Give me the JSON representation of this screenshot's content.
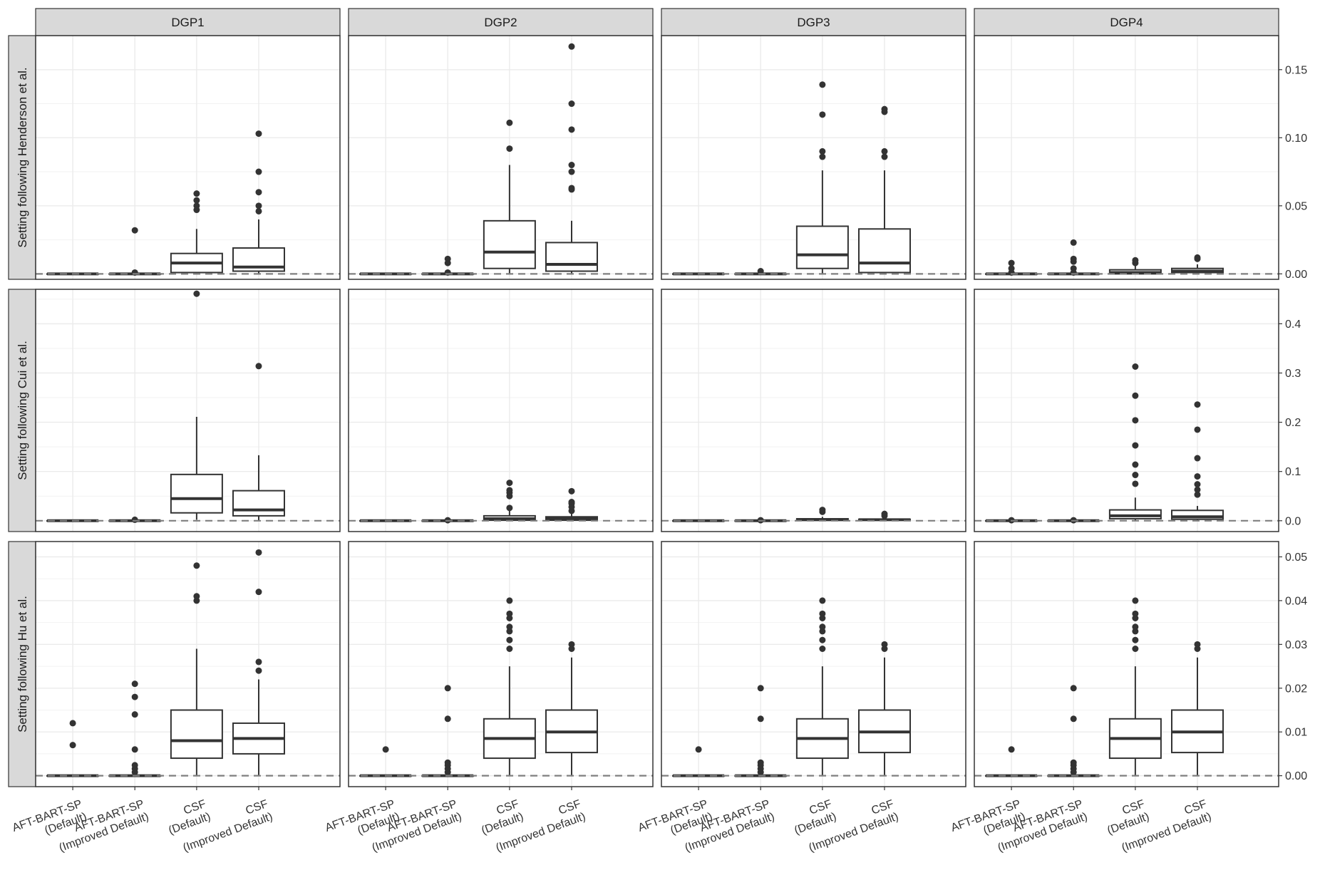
{
  "chart_data": {
    "type": "box",
    "categories": [
      [
        "AFT-BART-SP",
        "(Default)"
      ],
      [
        "AFT-BART-SP",
        "(Improved Default)"
      ],
      [
        "CSF",
        "(Default)"
      ],
      [
        "CSF",
        "(Improved Default)"
      ]
    ],
    "columns": [
      "DGP1",
      "DGP2",
      "DGP3",
      "DGP4"
    ],
    "rows": [
      {
        "label": "Setting following Henderson et al.",
        "ylim": [
          -0.004,
          0.175
        ],
        "yticks": [
          "0.00",
          "0.05",
          "0.10",
          "0.15"
        ],
        "ytick_values": [
          0,
          0.05,
          0.1,
          0.15
        ],
        "reference_line": 0,
        "panels": [
          {
            "boxes": [
              {
                "q1": 0,
                "median": 0,
                "q3": 0,
                "whisker_low": 0,
                "whisker_high": 0,
                "outliers": []
              },
              {
                "q1": 0,
                "median": 0,
                "q3": 0,
                "whisker_low": 0,
                "whisker_high": 0,
                "outliers": [
                  0.001,
                  0.032
                ]
              },
              {
                "q1": 0.001,
                "median": 0.008,
                "q3": 0.015,
                "whisker_low": 0,
                "whisker_high": 0.033,
                "outliers": [
                  0.047,
                  0.05,
                  0.054,
                  0.059
                ]
              },
              {
                "q1": 0.002,
                "median": 0.005,
                "q3": 0.019,
                "whisker_low": 0,
                "whisker_high": 0.04,
                "outliers": [
                  0.046,
                  0.05,
                  0.06,
                  0.075,
                  0.103
                ]
              }
            ]
          },
          {
            "boxes": [
              {
                "q1": 0,
                "median": 0,
                "q3": 0,
                "whisker_low": 0,
                "whisker_high": 0,
                "outliers": []
              },
              {
                "q1": 0,
                "median": 0,
                "q3": 0,
                "whisker_low": 0,
                "whisker_high": 0,
                "outliers": [
                  0.001,
                  0.008,
                  0.011
                ]
              },
              {
                "q1": 0.004,
                "median": 0.016,
                "q3": 0.039,
                "whisker_low": 0,
                "whisker_high": 0.08,
                "outliers": [
                  0.092,
                  0.111
                ]
              },
              {
                "q1": 0.002,
                "median": 0.007,
                "q3": 0.023,
                "whisker_low": 0,
                "whisker_high": 0.039,
                "outliers": [
                  0.062,
                  0.063,
                  0.075,
                  0.08,
                  0.106,
                  0.125,
                  0.167
                ]
              }
            ]
          },
          {
            "boxes": [
              {
                "q1": 0,
                "median": 0,
                "q3": 0,
                "whisker_low": 0,
                "whisker_high": 0,
                "outliers": []
              },
              {
                "q1": 0,
                "median": 0,
                "q3": 0,
                "whisker_low": 0,
                "whisker_high": 0,
                "outliers": [
                  0.002
                ]
              },
              {
                "q1": 0.004,
                "median": 0.014,
                "q3": 0.035,
                "whisker_low": 0,
                "whisker_high": 0.076,
                "outliers": [
                  0.086,
                  0.09,
                  0.117,
                  0.139
                ]
              },
              {
                "q1": 0.001,
                "median": 0.008,
                "q3": 0.033,
                "whisker_low": 0,
                "whisker_high": 0.076,
                "outliers": [
                  0.086,
                  0.09,
                  0.119,
                  0.121
                ]
              }
            ]
          },
          {
            "boxes": [
              {
                "q1": 0,
                "median": 0,
                "q3": 0,
                "whisker_low": 0,
                "whisker_high": 0,
                "outliers": [
                  0.001,
                  0.004,
                  0.008
                ]
              },
              {
                "q1": 0,
                "median": 0,
                "q3": 0,
                "whisker_low": 0,
                "whisker_high": 0,
                "outliers": [
                  0.001,
                  0.004,
                  0.009,
                  0.011,
                  0.023
                ]
              },
              {
                "q1": 0,
                "median": 0.001,
                "q3": 0.003,
                "whisker_low": 0,
                "whisker_high": 0.006,
                "outliers": [
                  0.008,
                  0.01
                ]
              },
              {
                "q1": 0.001,
                "median": 0.002,
                "q3": 0.004,
                "whisker_low": 0,
                "whisker_high": 0.007,
                "outliers": [
                  0.011,
                  0.012
                ]
              }
            ]
          }
        ]
      },
      {
        "label": "Setting following Cui et al.",
        "ylim": [
          -0.022,
          0.47
        ],
        "yticks": [
          "0.0",
          "0.1",
          "0.2",
          "0.3",
          "0.4"
        ],
        "ytick_values": [
          0,
          0.1,
          0.2,
          0.3,
          0.4
        ],
        "reference_line": 0,
        "panels": [
          {
            "boxes": [
              {
                "q1": 0,
                "median": 0,
                "q3": 0,
                "whisker_low": 0,
                "whisker_high": 0,
                "outliers": []
              },
              {
                "q1": 0,
                "median": 0,
                "q3": 0,
                "whisker_low": 0,
                "whisker_high": 0,
                "outliers": [
                  0.002
                ]
              },
              {
                "q1": 0.016,
                "median": 0.045,
                "q3": 0.094,
                "whisker_low": 0.002,
                "whisker_high": 0.211,
                "outliers": [
                  0.461
                ]
              },
              {
                "q1": 0.01,
                "median": 0.022,
                "q3": 0.061,
                "whisker_low": 0,
                "whisker_high": 0.133,
                "outliers": [
                  0.314
                ]
              }
            ]
          },
          {
            "boxes": [
              {
                "q1": 0,
                "median": 0,
                "q3": 0,
                "whisker_low": 0,
                "whisker_high": 0,
                "outliers": []
              },
              {
                "q1": 0,
                "median": 0,
                "q3": 0,
                "whisker_low": 0,
                "whisker_high": 0,
                "outliers": [
                  0.001
                ]
              },
              {
                "q1": 0.001,
                "median": 0.004,
                "q3": 0.01,
                "whisker_low": 0,
                "whisker_high": 0.02,
                "outliers": [
                  0.026,
                  0.05,
                  0.057,
                  0.062,
                  0.077
                ]
              },
              {
                "q1": 0.001,
                "median": 0.004,
                "q3": 0.008,
                "whisker_low": 0,
                "whisker_high": 0.015,
                "outliers": [
                  0.02,
                  0.028,
                  0.035,
                  0.038,
                  0.06
                ]
              }
            ]
          },
          {
            "boxes": [
              {
                "q1": 0,
                "median": 0,
                "q3": 0,
                "whisker_low": 0,
                "whisker_high": 0,
                "outliers": []
              },
              {
                "q1": 0,
                "median": 0,
                "q3": 0,
                "whisker_low": 0,
                "whisker_high": 0,
                "outliers": [
                  0.001
                ]
              },
              {
                "q1": 0.001,
                "median": 0.002,
                "q3": 0.004,
                "whisker_low": 0,
                "whisker_high": 0.008,
                "outliers": [
                  0.018,
                  0.022
                ]
              },
              {
                "q1": 0.001,
                "median": 0.002,
                "q3": 0.003,
                "whisker_low": 0,
                "whisker_high": 0.006,
                "outliers": [
                  0.01,
                  0.014
                ]
              }
            ]
          },
          {
            "boxes": [
              {
                "q1": 0,
                "median": 0,
                "q3": 0,
                "whisker_low": 0,
                "whisker_high": 0,
                "outliers": [
                  0.001
                ]
              },
              {
                "q1": 0,
                "median": 0,
                "q3": 0,
                "whisker_low": 0,
                "whisker_high": 0,
                "outliers": [
                  0.001
                ]
              },
              {
                "q1": 0.004,
                "median": 0.01,
                "q3": 0.022,
                "whisker_low": 0,
                "whisker_high": 0.047,
                "outliers": [
                  0.075,
                  0.093,
                  0.114,
                  0.153,
                  0.204,
                  0.254,
                  0.313
                ]
              },
              {
                "q1": 0.003,
                "median": 0.008,
                "q3": 0.021,
                "whisker_low": 0,
                "whisker_high": 0.03,
                "outliers": [
                  0.053,
                  0.063,
                  0.074,
                  0.09,
                  0.127,
                  0.185,
                  0.236
                ]
              }
            ]
          }
        ]
      },
      {
        "label": "Setting following Hu et al.",
        "ylim": [
          -0.0025,
          0.0535
        ],
        "yticks": [
          "0.00",
          "0.01",
          "0.02",
          "0.03",
          "0.04",
          "0.05"
        ],
        "ytick_values": [
          0,
          0.01,
          0.02,
          0.03,
          0.04,
          0.05
        ],
        "reference_line": 0,
        "panels": [
          {
            "boxes": [
              {
                "q1": 0,
                "median": 0,
                "q3": 0,
                "whisker_low": 0,
                "whisker_high": 0,
                "outliers": [
                  0.007,
                  0.012
                ]
              },
              {
                "q1": 0,
                "median": 0,
                "q3": 0,
                "whisker_low": 0,
                "whisker_high": 0,
                "outliers": [
                  0.0008,
                  0.0016,
                  0.0024,
                  0.006,
                  0.014,
                  0.018,
                  0.021
                ]
              },
              {
                "q1": 0.004,
                "median": 0.008,
                "q3": 0.015,
                "whisker_low": 0,
                "whisker_high": 0.029,
                "outliers": [
                  0.04,
                  0.041,
                  0.048
                ]
              },
              {
                "q1": 0.005,
                "median": 0.0085,
                "q3": 0.012,
                "whisker_low": 0,
                "whisker_high": 0.022,
                "outliers": [
                  0.024,
                  0.026,
                  0.042,
                  0.051
                ]
              }
            ]
          },
          {
            "boxes": [
              {
                "q1": 0,
                "median": 0,
                "q3": 0,
                "whisker_low": 0,
                "whisker_high": 0,
                "outliers": [
                  0.006
                ]
              },
              {
                "q1": 0,
                "median": 0,
                "q3": 0,
                "whisker_low": 0,
                "whisker_high": 0,
                "outliers": [
                  0.0008,
                  0.0016,
                  0.0024,
                  0.003,
                  0.013,
                  0.02
                ]
              },
              {
                "q1": 0.004,
                "median": 0.0085,
                "q3": 0.013,
                "whisker_low": 0,
                "whisker_high": 0.025,
                "outliers": [
                  0.029,
                  0.031,
                  0.033,
                  0.034,
                  0.036,
                  0.037,
                  0.04
                ]
              },
              {
                "q1": 0.0053,
                "median": 0.01,
                "q3": 0.015,
                "whisker_low": 0,
                "whisker_high": 0.027,
                "outliers": [
                  0.029,
                  0.03
                ]
              }
            ]
          },
          {
            "boxes": [
              {
                "q1": 0,
                "median": 0,
                "q3": 0,
                "whisker_low": 0,
                "whisker_high": 0,
                "outliers": [
                  0.006
                ]
              },
              {
                "q1": 0,
                "median": 0,
                "q3": 0,
                "whisker_low": 0,
                "whisker_high": 0,
                "outliers": [
                  0.0008,
                  0.0016,
                  0.0024,
                  0.003,
                  0.013,
                  0.02
                ]
              },
              {
                "q1": 0.004,
                "median": 0.0085,
                "q3": 0.013,
                "whisker_low": 0,
                "whisker_high": 0.025,
                "outliers": [
                  0.029,
                  0.031,
                  0.033,
                  0.034,
                  0.036,
                  0.037,
                  0.04
                ]
              },
              {
                "q1": 0.0053,
                "median": 0.01,
                "q3": 0.015,
                "whisker_low": 0,
                "whisker_high": 0.027,
                "outliers": [
                  0.029,
                  0.03
                ]
              }
            ]
          },
          {
            "boxes": [
              {
                "q1": 0,
                "median": 0,
                "q3": 0,
                "whisker_low": 0,
                "whisker_high": 0,
                "outliers": [
                  0.006
                ]
              },
              {
                "q1": 0,
                "median": 0,
                "q3": 0,
                "whisker_low": 0,
                "whisker_high": 0,
                "outliers": [
                  0.0008,
                  0.0016,
                  0.0024,
                  0.003,
                  0.013,
                  0.02
                ]
              },
              {
                "q1": 0.004,
                "median": 0.0085,
                "q3": 0.013,
                "whisker_low": 0,
                "whisker_high": 0.025,
                "outliers": [
                  0.029,
                  0.031,
                  0.033,
                  0.034,
                  0.036,
                  0.037,
                  0.04
                ]
              },
              {
                "q1": 0.0053,
                "median": 0.01,
                "q3": 0.015,
                "whisker_low": 0,
                "whisker_high": 0.027,
                "outliers": [
                  0.029,
                  0.03
                ]
              }
            ]
          }
        ]
      }
    ],
    "grid": true,
    "legend": "none",
    "colors": {
      "strip_fill": "#d9d9d9",
      "panel_border": "#333333",
      "grid_major": "#ebebeb",
      "box_stroke": "#333333",
      "outlier_fill": "#333333",
      "reference_line": "#7f7f7f"
    }
  }
}
